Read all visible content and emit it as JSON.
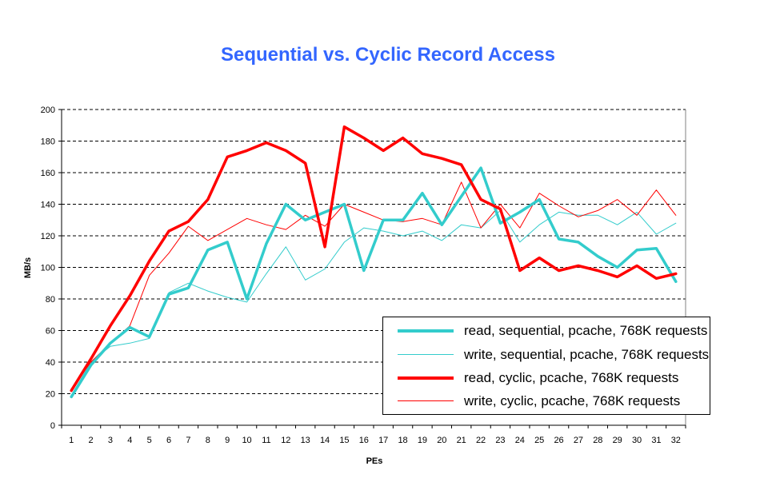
{
  "chart_data": {
    "type": "line",
    "title": "Sequential vs. Cyclic Record Access",
    "xlabel": "PEs",
    "ylabel": "MB/s",
    "ylim": [
      0,
      200
    ],
    "yticks": [
      0,
      20,
      40,
      60,
      80,
      100,
      120,
      140,
      160,
      180,
      200
    ],
    "x": [
      1,
      2,
      3,
      4,
      5,
      6,
      7,
      8,
      9,
      10,
      11,
      12,
      13,
      14,
      15,
      16,
      17,
      18,
      19,
      20,
      21,
      22,
      23,
      24,
      25,
      26,
      27,
      28,
      29,
      30,
      31,
      32
    ],
    "grid": "horizontal dashed",
    "legend_position": "bottom-right",
    "series": [
      {
        "name": "read, sequential, pcache, 768K requests",
        "color": "#33cccc",
        "width": "thick",
        "values": [
          18,
          38,
          52,
          62,
          56,
          83,
          87,
          111,
          116,
          80,
          115,
          140,
          130,
          135,
          140,
          98,
          130,
          130,
          147,
          127,
          145,
          163,
          128,
          135,
          143,
          118,
          116,
          107,
          100,
          111,
          112,
          91
        ]
      },
      {
        "name": "write, sequential, pcache, 768K requests",
        "color": "#33cccc",
        "width": "thin",
        "values": [
          19,
          40,
          50,
          52,
          55,
          84,
          90,
          85,
          81,
          78,
          96,
          113,
          92,
          99,
          116,
          125,
          123,
          120,
          123,
          117,
          127,
          125,
          136,
          116,
          127,
          135,
          133,
          133,
          127,
          135,
          121,
          128
        ]
      },
      {
        "name": "read, cyclic, pcache, 768K requests",
        "color": "#ff0000",
        "width": "thick",
        "values": [
          22,
          42,
          63,
          82,
          104,
          123,
          129,
          143,
          170,
          174,
          179,
          174,
          166,
          113,
          189,
          182,
          174,
          182,
          172,
          169,
          165,
          143,
          137,
          98,
          106,
          98,
          101,
          98,
          94,
          101,
          93,
          96
        ]
      },
      {
        "name": "write, cyclic, pcache, 768K requests",
        "color": "#ff0000",
        "width": "thin",
        "values": [
          23,
          40,
          52,
          63,
          95,
          109,
          126,
          117,
          124,
          131,
          127,
          124,
          133,
          126,
          140,
          135,
          130,
          129,
          131,
          127,
          154,
          125,
          140,
          125,
          147,
          139,
          132,
          136,
          143,
          133,
          149,
          133
        ]
      }
    ]
  }
}
